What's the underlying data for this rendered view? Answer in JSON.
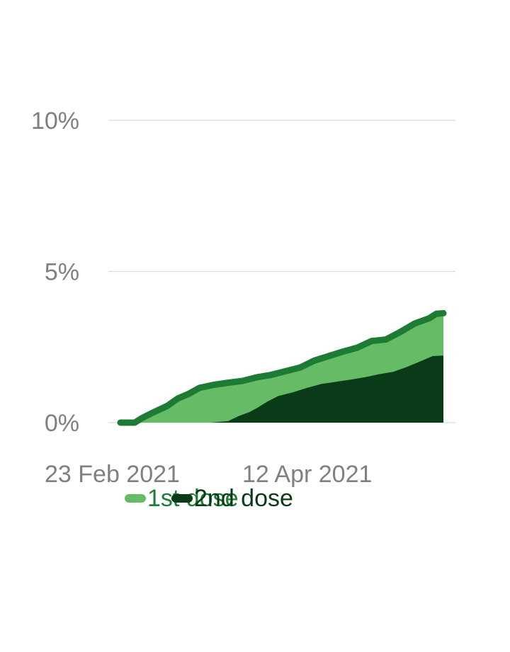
{
  "chart_data": {
    "type": "area",
    "title": "",
    "xlabel": "",
    "ylabel": "",
    "ylim": [
      0,
      10
    ],
    "y_ticks": [
      {
        "value": 0,
        "label": "0%"
      },
      {
        "value": 5,
        "label": "5%"
      },
      {
        "value": 10,
        "label": "10%"
      }
    ],
    "x_ticks": [
      {
        "date": "2021-02-23",
        "label": "23 Feb 2021"
      },
      {
        "date": "2021-04-12",
        "label": "12 Apr 2021"
      }
    ],
    "x_range": [
      "2021-02-23",
      "2021-05-24"
    ],
    "grid": true,
    "legend_position": "bottom",
    "colors": {
      "first_fill": "#66bb66",
      "first_line": "#1e7b34",
      "second_fill": "#0a3b18",
      "legend_first_text": "#1e7b34",
      "legend_second_text": "#0a3b18"
    },
    "series": [
      {
        "name": "1st dose",
        "dates": [
          "2021-02-23",
          "2021-02-27",
          "2021-03-01",
          "2021-03-04",
          "2021-03-08",
          "2021-03-11",
          "2021-03-14",
          "2021-03-17",
          "2021-03-21",
          "2021-03-25",
          "2021-03-29",
          "2021-04-02",
          "2021-04-06",
          "2021-04-10",
          "2021-04-14",
          "2021-04-18",
          "2021-04-22",
          "2021-04-26",
          "2021-04-30",
          "2021-05-04",
          "2021-05-08",
          "2021-05-12",
          "2021-05-16",
          "2021-05-20",
          "2021-05-22",
          "2021-05-24"
        ],
        "values": [
          0.0,
          0.0,
          0.15,
          0.33,
          0.55,
          0.8,
          0.95,
          1.15,
          1.25,
          1.32,
          1.38,
          1.5,
          1.58,
          1.7,
          1.82,
          2.05,
          2.2,
          2.35,
          2.48,
          2.7,
          2.75,
          3.0,
          3.28,
          3.45,
          3.6,
          3.62
        ]
      },
      {
        "name": "2nd dose",
        "dates": [
          "2021-02-23",
          "2021-03-01",
          "2021-03-10",
          "2021-03-20",
          "2021-03-25",
          "2021-03-28",
          "2021-03-31",
          "2021-04-02",
          "2021-04-05",
          "2021-04-08",
          "2021-04-12",
          "2021-04-16",
          "2021-04-20",
          "2021-04-24",
          "2021-04-28",
          "2021-05-02",
          "2021-05-06",
          "2021-05-10",
          "2021-05-14",
          "2021-05-18",
          "2021-05-21",
          "2021-05-24"
        ],
        "values": [
          0.0,
          0.0,
          0.0,
          0.0,
          0.05,
          0.22,
          0.35,
          0.48,
          0.7,
          0.88,
          1.0,
          1.15,
          1.28,
          1.35,
          1.42,
          1.5,
          1.6,
          1.68,
          1.85,
          2.05,
          2.2,
          2.22
        ]
      }
    ]
  }
}
